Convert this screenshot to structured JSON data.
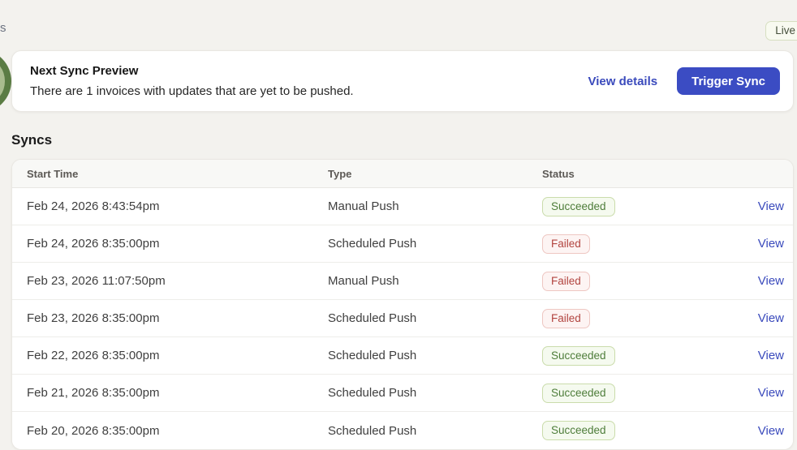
{
  "page": {
    "top_left_fragment": "s",
    "live_badge_label": "Live"
  },
  "next_sync_card": {
    "title": "Next Sync Preview",
    "message": "There are 1 invoices with updates that are yet to be pushed.",
    "view_details_label": "View details",
    "trigger_sync_label": "Trigger Sync"
  },
  "syncs": {
    "heading": "Syncs",
    "columns": {
      "start_time": "Start Time",
      "type": "Type",
      "status": "Status"
    },
    "view_label": "View",
    "rows": [
      {
        "start_time": "Feb 24, 2026 8:43:54pm",
        "type": "Manual Push",
        "status": "Succeeded"
      },
      {
        "start_time": "Feb 24, 2026 8:35:00pm",
        "type": "Scheduled Push",
        "status": "Failed"
      },
      {
        "start_time": "Feb 23, 2026 11:07:50pm",
        "type": "Manual Push",
        "status": "Failed"
      },
      {
        "start_time": "Feb 23, 2026 8:35:00pm",
        "type": "Scheduled Push",
        "status": "Failed"
      },
      {
        "start_time": "Feb 22, 2026 8:35:00pm",
        "type": "Scheduled Push",
        "status": "Succeeded"
      },
      {
        "start_time": "Feb 21, 2026 8:35:00pm",
        "type": "Scheduled Push",
        "status": "Succeeded"
      },
      {
        "start_time": "Feb 20, 2026 8:35:00pm",
        "type": "Scheduled Push",
        "status": "Succeeded"
      }
    ]
  },
  "colors": {
    "accent_button": "#3b4cc3",
    "link": "#3a4abc",
    "success_text": "#4e7d3a",
    "failed_text": "#b24540",
    "live_text": "#454f3b",
    "page_background": "#f3f2ee"
  }
}
